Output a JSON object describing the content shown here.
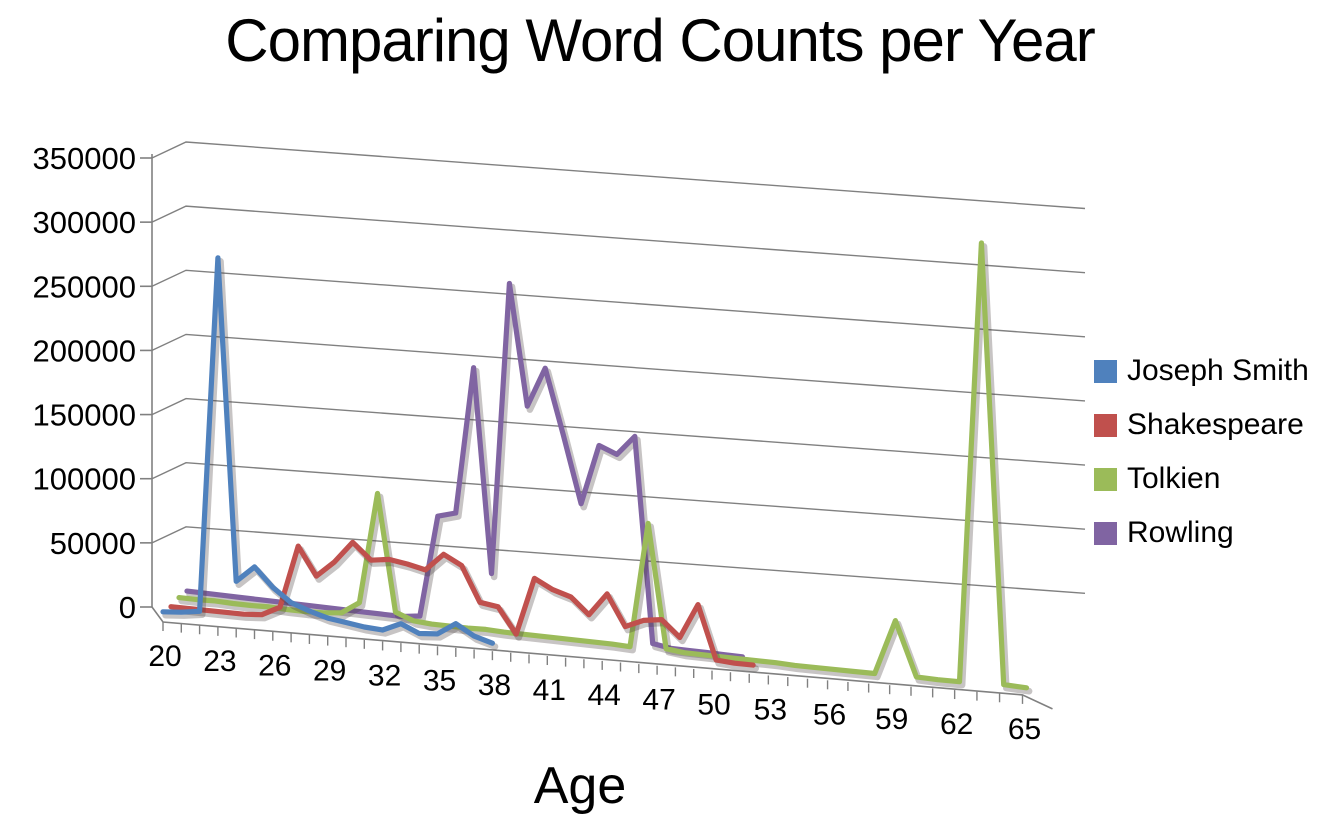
{
  "chart_data": {
    "type": "line",
    "style": "3d-perspective",
    "title": "Comparing Word Counts per Year",
    "xlabel": "Age",
    "ylabel": "",
    "ylim": [
      0,
      350000
    ],
    "ytick_step": 50000,
    "grid": true,
    "legend_position": "right",
    "y_ticks": [
      "0",
      "50000",
      "100000",
      "150000",
      "200000",
      "250000",
      "300000",
      "350000"
    ],
    "x_ticks": [
      "20",
      "23",
      "26",
      "29",
      "32",
      "35",
      "38",
      "41",
      "44",
      "47",
      "50",
      "53",
      "56",
      "59",
      "62",
      "65"
    ],
    "x": [
      20,
      21,
      22,
      23,
      24,
      25,
      26,
      27,
      28,
      29,
      30,
      31,
      32,
      33,
      34,
      35,
      36,
      37,
      38,
      39,
      40,
      41,
      42,
      43,
      44,
      45,
      46,
      47,
      48,
      49,
      50,
      51,
      52,
      53,
      54,
      55,
      56,
      57,
      58,
      59,
      60,
      61,
      62,
      63,
      64,
      65
    ],
    "series": [
      {
        "name": "Joseph Smith",
        "color": "#4F81BD",
        "values": [
          2000,
          3000,
          5000,
          270000,
          30000,
          42000,
          28000,
          18000,
          13000,
          9000,
          7000,
          5000,
          4000,
          10000,
          4000,
          5000,
          14000,
          6000,
          2000,
          null,
          null,
          null,
          null,
          null,
          null,
          null,
          null,
          null,
          null,
          null,
          null,
          null,
          null,
          null,
          null,
          null,
          null,
          null,
          null,
          null,
          null,
          null,
          null,
          null,
          null,
          null
        ]
      },
      {
        "name": "Shakespeare",
        "color": "#C0504D",
        "values": [
          0,
          0,
          0,
          0,
          0,
          1000,
          8000,
          55000,
          34000,
          46000,
          62000,
          50000,
          52000,
          50000,
          47000,
          60000,
          53000,
          27000,
          25000,
          6000,
          49000,
          42000,
          38000,
          26000,
          43000,
          20000,
          26000,
          28000,
          16000,
          42000,
          2000,
          1000,
          1000,
          null,
          null,
          null,
          null,
          null,
          null,
          null,
          null,
          null,
          null,
          null,
          null,
          null
        ]
      },
      {
        "name": "Tolkien",
        "color": "#9BBB59",
        "values": [
          1000,
          1000,
          1500,
          1000,
          1000,
          1500,
          1000,
          1000,
          1500,
          3000,
          12000,
          95000,
          8000,
          3000,
          2000,
          2000,
          2000,
          2500,
          2000,
          2000,
          2000,
          2000,
          2000,
          2000,
          2000,
          1500,
          95000,
          3000,
          1500,
          1500,
          1500,
          1500,
          1500,
          1500,
          1000,
          1000,
          1000,
          1000,
          1000,
          42000,
          1500,
          1000,
          1000,
          330000,
          2000,
          1000
        ]
      },
      {
        "name": "Rowling",
        "color": "#8064A2",
        "values": [
          0,
          0,
          0,
          0,
          0,
          0,
          0,
          0,
          0,
          0,
          0,
          0,
          0,
          2000,
          78000,
          82000,
          192000,
          40000,
          258000,
          168000,
          198000,
          150000,
          100000,
          145000,
          140000,
          155000,
          2000,
          0,
          0,
          0,
          0,
          0,
          null,
          null,
          null,
          null,
          null,
          null,
          null,
          null,
          null,
          null,
          null,
          null,
          null,
          null
        ]
      }
    ]
  },
  "colors": {
    "gridline": "#808080",
    "axis": "#808080",
    "text": "#000000",
    "background": "#ffffff"
  }
}
